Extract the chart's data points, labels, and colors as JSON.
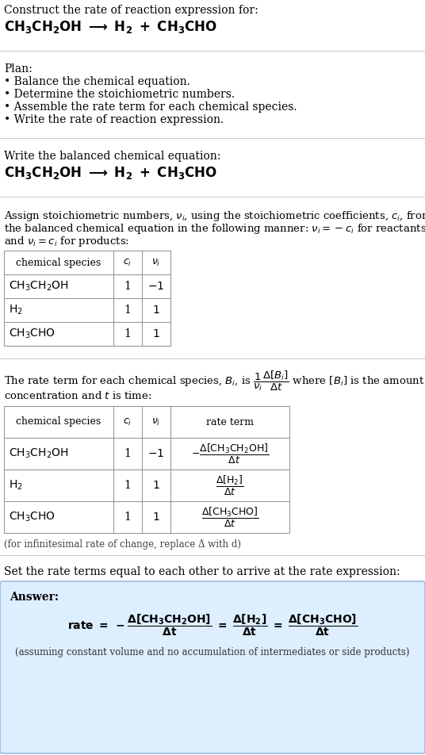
{
  "bg_color": "#ffffff",
  "answer_bg_color": "#ddeeff",
  "sep_color": "#cccccc",
  "table_line_color": "#999999",
  "plan_items": [
    "• Balance the chemical equation.",
    "• Determine the stoichiometric numbers.",
    "• Assemble the rate term for each chemical species.",
    "• Write the rate of reaction expression."
  ],
  "infinitesimal_note": "(for infinitesimal rate of change, replace Δ with d)",
  "set_equal_text": "Set the rate terms equal to each other to arrive at the rate expression:",
  "answer_label": "Answer:",
  "answer_note": "(assuming constant volume and no accumulation of intermediates or side products)",
  "font_serif": "DejaVu Serif"
}
